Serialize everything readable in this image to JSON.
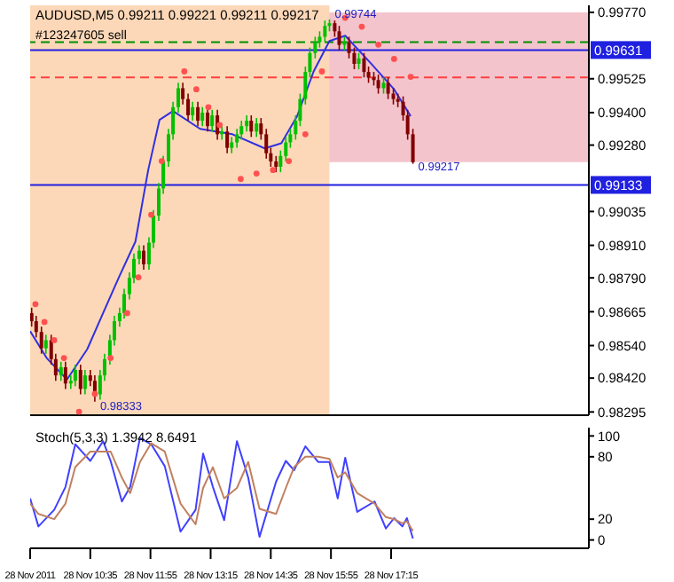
{
  "chart_data": [
    {
      "type": "candlestick",
      "title": "AUDUSD,M5  0.99211 0.99221 0.99211 0.99217",
      "x": [
        "2011-11-28T09:17",
        "2011-11-28T09:23",
        "2011-11-28T09:30",
        "2011-11-28T09:36",
        "2011-11-28T09:43",
        "2011-11-28T09:49",
        "2011-11-28T09:56",
        "2011-11-28T10:02",
        "2011-11-28T10:09",
        "2011-11-28T10:15",
        "2011-11-28T10:22",
        "2011-11-28T10:28",
        "2011-11-28T10:35",
        "2011-11-28T10:41",
        "2011-11-28T10:48",
        "2011-11-28T10:54",
        "2011-11-28T11:01",
        "2011-11-28T11:07",
        "2011-11-28T11:14",
        "2011-11-28T11:20",
        "2011-11-28T11:27",
        "2011-11-28T11:33",
        "2011-11-28T11:40",
        "2011-11-28T11:46",
        "2011-11-28T11:53",
        "2011-11-28T11:59",
        "2011-11-28T12:06",
        "2011-11-28T12:12",
        "2011-11-28T12:19",
        "2011-11-28T12:25",
        "2011-11-28T12:32",
        "2011-11-28T12:38",
        "2011-11-28T12:45",
        "2011-11-28T12:51",
        "2011-11-28T12:58",
        "2011-11-28T13:04",
        "2011-11-28T13:11",
        "2011-11-28T13:17",
        "2011-11-28T13:24",
        "2011-11-28T13:30",
        "2011-11-28T13:37",
        "2011-11-28T13:43",
        "2011-11-28T13:50",
        "2011-11-28T13:56",
        "2011-11-28T14:03",
        "2011-11-28T14:09",
        "2011-11-28T14:16",
        "2011-11-28T14:22",
        "2011-11-28T14:29",
        "2011-11-28T14:35",
        "2011-11-28T14:42",
        "2011-11-28T14:48",
        "2011-11-28T14:55",
        "2011-11-28T15:01",
        "2011-11-28T15:08",
        "2011-11-28T15:14",
        "2011-11-28T15:21",
        "2011-11-28T15:27",
        "2011-11-28T15:34",
        "2011-11-28T15:40",
        "2011-11-28T15:47",
        "2011-11-28T15:53",
        "2011-11-28T16:00",
        "2011-11-28T16:06",
        "2011-11-28T16:13",
        "2011-11-28T16:19",
        "2011-11-28T16:26",
        "2011-11-28T16:32",
        "2011-11-28T16:39",
        "2011-11-28T16:45",
        "2011-11-28T16:52",
        "2011-11-28T16:58",
        "2011-11-28T17:05",
        "2011-11-28T17:11",
        "2011-11-28T17:18",
        "2011-11-28T17:24",
        "2011-11-28T17:31",
        "2011-11-28T17:37",
        "2011-11-28T17:44"
      ],
      "ohlc": [
        [
          0.9866,
          0.9868,
          0.9861,
          0.9863
        ],
        [
          0.9863,
          0.9865,
          0.9857,
          0.9859
        ],
        [
          0.9859,
          0.9861,
          0.9851,
          0.9853
        ],
        [
          0.9853,
          0.9858,
          0.9851,
          0.9856
        ],
        [
          0.9856,
          0.9858,
          0.9847,
          0.9849
        ],
        [
          0.9849,
          0.9851,
          0.9841,
          0.9843
        ],
        [
          0.9843,
          0.9848,
          0.9841,
          0.9846
        ],
        [
          0.9846,
          0.9848,
          0.9838,
          0.984
        ],
        [
          0.984,
          0.9843,
          0.9838,
          0.9841
        ],
        [
          0.9841,
          0.9847,
          0.9839,
          0.9845
        ],
        [
          0.9845,
          0.9847,
          0.9836,
          0.9838
        ],
        [
          0.9838,
          0.9845,
          0.9836,
          0.9843
        ],
        [
          0.9843,
          0.9845,
          0.9839,
          0.9841
        ],
        [
          0.9841,
          0.9843,
          0.98333,
          0.9836
        ],
        [
          0.9836,
          0.9845,
          0.9834,
          0.9843
        ],
        [
          0.9843,
          0.9851,
          0.9841,
          0.9849
        ],
        [
          0.9849,
          0.9858,
          0.9847,
          0.9856
        ],
        [
          0.9856,
          0.9865,
          0.9854,
          0.9863
        ],
        [
          0.9863,
          0.9868,
          0.9861,
          0.9866
        ],
        [
          0.9866,
          0.9875,
          0.9864,
          0.9873
        ],
        [
          0.9873,
          0.9881,
          0.9871,
          0.9879
        ],
        [
          0.9879,
          0.9888,
          0.9877,
          0.9886
        ],
        [
          0.9886,
          0.9891,
          0.9884,
          0.9889
        ],
        [
          0.9889,
          0.9891,
          0.9882,
          0.9884
        ],
        [
          0.9884,
          0.9894,
          0.9882,
          0.9892
        ],
        [
          0.9892,
          0.9904,
          0.989,
          0.9902
        ],
        [
          0.9902,
          0.9914,
          0.99,
          0.9912
        ],
        [
          0.9912,
          0.9924,
          0.991,
          0.9922
        ],
        [
          0.9922,
          0.9934,
          0.992,
          0.9932
        ],
        [
          0.9932,
          0.9944,
          0.993,
          0.9942
        ],
        [
          0.9942,
          0.9951,
          0.994,
          0.9949
        ],
        [
          0.9949,
          0.9951,
          0.9943,
          0.9945
        ],
        [
          0.9945,
          0.9947,
          0.9937,
          0.9939
        ],
        [
          0.9939,
          0.9944,
          0.9937,
          0.9942
        ],
        [
          0.9942,
          0.9944,
          0.9935,
          0.9937
        ],
        [
          0.9937,
          0.9942,
          0.9935,
          0.994
        ],
        [
          0.994,
          0.9942,
          0.9933,
          0.9935
        ],
        [
          0.9935,
          0.9941,
          0.9933,
          0.9939
        ],
        [
          0.9939,
          0.9941,
          0.993,
          0.9932
        ],
        [
          0.9932,
          0.9935,
          0.993,
          0.9933
        ],
        [
          0.9933,
          0.9935,
          0.9925,
          0.9927
        ],
        [
          0.9927,
          0.9931,
          0.9925,
          0.9929
        ],
        [
          0.9929,
          0.9934,
          0.9927,
          0.9932
        ],
        [
          0.9932,
          0.9937,
          0.993,
          0.9935
        ],
        [
          0.9935,
          0.9939,
          0.9933,
          0.9937
        ],
        [
          0.9937,
          0.9939,
          0.9931,
          0.9933
        ],
        [
          0.9933,
          0.9938,
          0.9931,
          0.9936
        ],
        [
          0.9936,
          0.9938,
          0.993,
          0.9932
        ],
        [
          0.9932,
          0.9934,
          0.9923,
          0.9925
        ],
        [
          0.9925,
          0.9927,
          0.992,
          0.9922
        ],
        [
          0.9922,
          0.9924,
          0.9918,
          0.992
        ],
        [
          0.992,
          0.9926,
          0.9918,
          0.9924
        ],
        [
          0.9924,
          0.9931,
          0.9922,
          0.9929
        ],
        [
          0.9929,
          0.9934,
          0.9927,
          0.9932
        ],
        [
          0.9932,
          0.9939,
          0.993,
          0.9937
        ],
        [
          0.9937,
          0.9947,
          0.9935,
          0.9945
        ],
        [
          0.9945,
          0.9957,
          0.9943,
          0.9955
        ],
        [
          0.9955,
          0.9964,
          0.9953,
          0.9962
        ],
        [
          0.9962,
          0.9968,
          0.996,
          0.9966
        ],
        [
          0.9966,
          0.997,
          0.9964,
          0.9968
        ],
        [
          0.9968,
          0.9974,
          0.9966,
          0.9972
        ],
        [
          0.9972,
          0.99744,
          0.997,
          0.9973
        ],
        [
          0.9973,
          0.9974,
          0.9968,
          0.997
        ],
        [
          0.997,
          0.9972,
          0.9963,
          0.9965
        ],
        [
          0.9965,
          0.9968,
          0.9963,
          0.9966
        ],
        [
          0.9966,
          0.9968,
          0.996,
          0.9962
        ],
        [
          0.9962,
          0.9964,
          0.9956,
          0.9958
        ],
        [
          0.9958,
          0.9962,
          0.9956,
          0.996
        ],
        [
          0.996,
          0.9962,
          0.9953,
          0.9955
        ],
        [
          0.9955,
          0.9957,
          0.9951,
          0.9953
        ],
        [
          0.9953,
          0.9955,
          0.995,
          0.9952
        ],
        [
          0.9952,
          0.9954,
          0.9947,
          0.9949
        ],
        [
          0.9949,
          0.9953,
          0.9947,
          0.9951
        ],
        [
          0.9951,
          0.9953,
          0.9945,
          0.9947
        ],
        [
          0.9947,
          0.9949,
          0.9943,
          0.9945
        ],
        [
          0.9945,
          0.9947,
          0.9942,
          0.9944
        ],
        [
          0.9944,
          0.9946,
          0.9937,
          0.9939
        ],
        [
          0.9939,
          0.9941,
          0.993,
          0.9932
        ],
        [
          0.9932,
          0.9934,
          0.99211,
          0.99217
        ]
      ],
      "colors": [
        "#800000",
        "#800000",
        "#800000",
        "#00c000",
        "#800000",
        "#800000",
        "#00c000",
        "#800000",
        "#00c000",
        "#00c000",
        "#800000",
        "#00c000",
        "#800000",
        "#800000",
        "#00c000",
        "#00c000",
        "#00c000",
        "#00c000",
        "#00c000",
        "#00c000",
        "#00c000",
        "#00c000",
        "#00c000",
        "#800000",
        "#00c000",
        "#00c000",
        "#00c000",
        "#00c000",
        "#00c000",
        "#00c000",
        "#00c000",
        "#800000",
        "#800000",
        "#00c000",
        "#800000",
        "#00c000",
        "#800000",
        "#00c000",
        "#800000",
        "#00c000",
        "#800000",
        "#00c000",
        "#00c000",
        "#00c000",
        "#00c000",
        "#800000",
        "#00c000",
        "#800000",
        "#800000",
        "#800000",
        "#800000",
        "#00c000",
        "#00c000",
        "#00c000",
        "#00c000",
        "#00c000",
        "#00c000",
        "#00c000",
        "#00c000",
        "#00c000",
        "#00c000",
        "#00c000",
        "#800000",
        "#800000",
        "#00c000",
        "#800000",
        "#800000",
        "#00c000",
        "#800000",
        "#800000",
        "#800000",
        "#800000",
        "#00c000",
        "#800000",
        "#800000",
        "#800000",
        "#800000",
        "#800000",
        "#800000"
      ],
      "series": [
        {
          "type": "line",
          "color": "#3030e0",
          "x": [
            "2011-11-28T09:15",
            "2011-11-28T09:37",
            "2011-11-28T10:04",
            "2011-11-28T10:31",
            "2011-11-28T10:52",
            "2011-11-28T11:13",
            "2011-11-28T11:35",
            "2011-11-28T11:52",
            "2011-11-28T12:07",
            "2011-11-28T12:25",
            "2011-11-28T13:01",
            "2011-11-28T13:44",
            "2011-11-28T14:27",
            "2011-11-28T14:49",
            "2011-11-28T15:10",
            "2011-11-28T15:32",
            "2011-11-28T15:53",
            "2011-11-28T16:14",
            "2011-11-28T16:47",
            "2011-11-28T17:19",
            "2011-11-28T17:41"
          ],
          "values": [
            0.98593,
            0.98494,
            0.98415,
            0.98527,
            0.9866,
            0.98792,
            0.98924,
            0.99188,
            0.99373,
            0.99406,
            0.9934,
            0.9932,
            0.99268,
            0.99287,
            0.99387,
            0.99552,
            0.99664,
            0.99684,
            0.99585,
            0.99486,
            0.99387
          ]
        },
        {
          "type": "scatter",
          "color": "#ff5050",
          "x": [
            "2011-11-28T09:22",
            "2011-11-28T09:34",
            "2011-11-28T09:47",
            "2011-11-28T10:00",
            "2011-11-28T10:20",
            "2011-11-28T10:41",
            "2011-11-28T11:02",
            "2011-11-28T11:24",
            "2011-11-28T11:39",
            "2011-11-28T11:56",
            "2011-11-28T12:10",
            "2011-11-28T12:40",
            "2011-11-28T12:56",
            "2011-11-28T13:12",
            "2011-11-28T13:27",
            "2011-11-28T13:55",
            "2011-11-28T14:16",
            "2011-11-28T14:38",
            "2011-11-28T14:59",
            "2011-11-28T15:21",
            "2011-11-28T15:43",
            "2011-11-28T16:14",
            "2011-11-28T16:36",
            "2011-11-28T16:58",
            "2011-11-28T17:19",
            "2011-11-28T17:41"
          ],
          "values": [
            0.98693,
            0.98627,
            0.9856,
            0.98494,
            0.98296,
            0.98362,
            0.98494,
            0.9866,
            0.98792,
            0.99023,
            0.99221,
            0.99552,
            0.99486,
            0.9942,
            0.99354,
            0.99155,
            0.99175,
            0.99188,
            0.99221,
            0.9932,
            0.99552,
            0.9975,
            0.99717,
            0.99651,
            0.99598,
            0.99532
          ]
        }
      ],
      "bands": [
        {
          "axis": "y",
          "from": 0.99217,
          "to": 0.9977,
          "color": "#f4c4cc"
        },
        {
          "axis": "x",
          "from": "2011-11-28T09:15",
          "to": "2011-11-28T15:53",
          "color": "#fcd8b8"
        }
      ],
      "ref_lines": [
        {
          "axis": "y",
          "value": 0.9966,
          "label": "#123247605 sell",
          "color": "#009000",
          "line_style": "dashed"
        },
        {
          "axis": "y",
          "value": 0.99631,
          "label": "0.99631",
          "color": "#2020e0"
        },
        {
          "axis": "y",
          "value": 0.9953,
          "color": "#ff4040",
          "line_style": "dashed"
        },
        {
          "axis": "y",
          "value": 0.99133,
          "label": "0.99133",
          "color": "#2020e0"
        }
      ],
      "annotations": [
        {
          "text": "0.99744",
          "x": "2011-11-28T15:53",
          "y": 0.99744
        },
        {
          "text": "0.98333",
          "x": "2011-11-28T10:41",
          "y": 0.98333
        },
        {
          "text": "0.99217",
          "x": "2011-11-28T17:44",
          "y": 0.99217
        }
      ],
      "xlim": [
        "2011-11-28T09:15",
        "2011-11-28T21:38"
      ],
      "ylim": [
        0.98283,
        0.99796
      ],
      "yticks": [
        {
          "value": 0.9977,
          "label": "0.99770"
        },
        0.99525,
        {
          "value": 0.994,
          "label": "0.99400"
        },
        {
          "value": 0.9928,
          "label": "0.99280"
        },
        0.99035,
        {
          "value": 0.9891,
          "label": "0.98910"
        },
        {
          "value": 0.9879,
          "label": "0.98790"
        },
        0.98665,
        {
          "value": 0.9854,
          "label": "0.98540"
        },
        {
          "value": 0.9842,
          "label": "0.98420"
        },
        0.98295
      ],
      "tick_labels": "y"
    },
    {
      "type": "line",
      "title": "Stoch(5,3,3) 1.3942 8.6491",
      "series": [
        {
          "color": "#4040ff",
          "x": [
            "2011-11-28T09:15",
            "2011-11-28T09:26",
            "2011-11-28T09:47",
            "2011-11-28T10:02",
            "2011-11-28T10:15",
            "2011-11-28T10:35",
            "2011-11-28T10:52",
            "2011-11-28T11:02",
            "2011-11-28T11:17",
            "2011-11-28T11:28",
            "2011-11-28T11:41",
            "2011-11-28T11:56",
            "2011-11-28T12:14",
            "2011-11-28T12:35",
            "2011-11-28T12:55",
            "2011-11-28T13:05",
            "2011-11-28T13:18",
            "2011-11-28T13:33",
            "2011-11-28T13:50",
            "2011-11-28T14:05",
            "2011-11-28T14:20",
            "2011-11-28T14:42",
            "2011-11-28T14:55",
            "2011-11-28T15:06",
            "2011-11-28T15:21",
            "2011-11-28T15:38",
            "2011-11-28T15:53",
            "2011-11-28T16:04",
            "2011-11-28T16:14",
            "2011-11-28T16:30",
            "2011-11-28T16:53",
            "2011-11-28T17:08",
            "2011-11-28T17:19",
            "2011-11-28T17:30",
            "2011-11-28T17:36",
            "2011-11-28T17:44"
          ],
          "values": [
            40,
            13,
            29,
            51,
            92,
            76,
            95,
            76,
            37,
            51,
            98,
            92,
            71,
            8,
            29,
            83,
            51,
            19,
            95,
            60,
            3,
            56,
            76,
            67,
            90,
            75,
            75,
            40,
            79,
            27,
            37,
            11,
            21,
            13,
            21,
            1.3942
          ]
        },
        {
          "color": "#c08060",
          "x": [
            "2011-11-28T09:15",
            "2011-11-28T09:26",
            "2011-11-28T09:47",
            "2011-11-28T10:02",
            "2011-11-28T10:15",
            "2011-11-28T10:35",
            "2011-11-28T10:52",
            "2011-11-28T11:02",
            "2011-11-28T11:17",
            "2011-11-28T11:28",
            "2011-11-28T11:41",
            "2011-11-28T11:56",
            "2011-11-28T12:14",
            "2011-11-28T12:35",
            "2011-11-28T12:55",
            "2011-11-28T13:05",
            "2011-11-28T13:18",
            "2011-11-28T13:33",
            "2011-11-28T13:50",
            "2011-11-28T14:05",
            "2011-11-28T14:20",
            "2011-11-28T14:42",
            "2011-11-28T14:55",
            "2011-11-28T15:06",
            "2011-11-28T15:21",
            "2011-11-28T15:38",
            "2011-11-28T15:53",
            "2011-11-28T16:04",
            "2011-11-28T16:14",
            "2011-11-28T16:30",
            "2011-11-28T16:53",
            "2011-11-28T17:08",
            "2011-11-28T17:19",
            "2011-11-28T17:30",
            "2011-11-28T17:36",
            "2011-11-28T17:44"
          ],
          "values": [
            35,
            25,
            20,
            35,
            70,
            85,
            85,
            85,
            60,
            45,
            75,
            93,
            85,
            35,
            15,
            50,
            70,
            40,
            50,
            75,
            30,
            25,
            50,
            70,
            80,
            80,
            78,
            60,
            65,
            45,
            35,
            22,
            20,
            16,
            18,
            8.6491
          ]
        }
      ],
      "xlim": [
        "2011-11-28T09:15",
        "2011-11-28T21:38"
      ],
      "ylim": [
        -8,
        108
      ],
      "xticks": [
        {
          "value": "2011-11-28T09:15",
          "label": "28 Nov 2011"
        },
        {
          "value": "2011-11-28T10:35",
          "label": "28 Nov 10:35"
        },
        {
          "value": "2011-11-28T11:55",
          "label": "28 Nov 11:55"
        },
        {
          "value": "2011-11-28T13:15",
          "label": "28 Nov 13:15"
        },
        {
          "value": "2011-11-28T14:35",
          "label": "28 Nov 14:35"
        },
        {
          "value": "2011-11-28T15:55",
          "label": "28 Nov 15:55"
        },
        {
          "value": "2011-11-28T17:15",
          "label": "28 Nov 17:15"
        }
      ],
      "yticks": [
        100,
        80,
        20,
        0
      ]
    }
  ]
}
